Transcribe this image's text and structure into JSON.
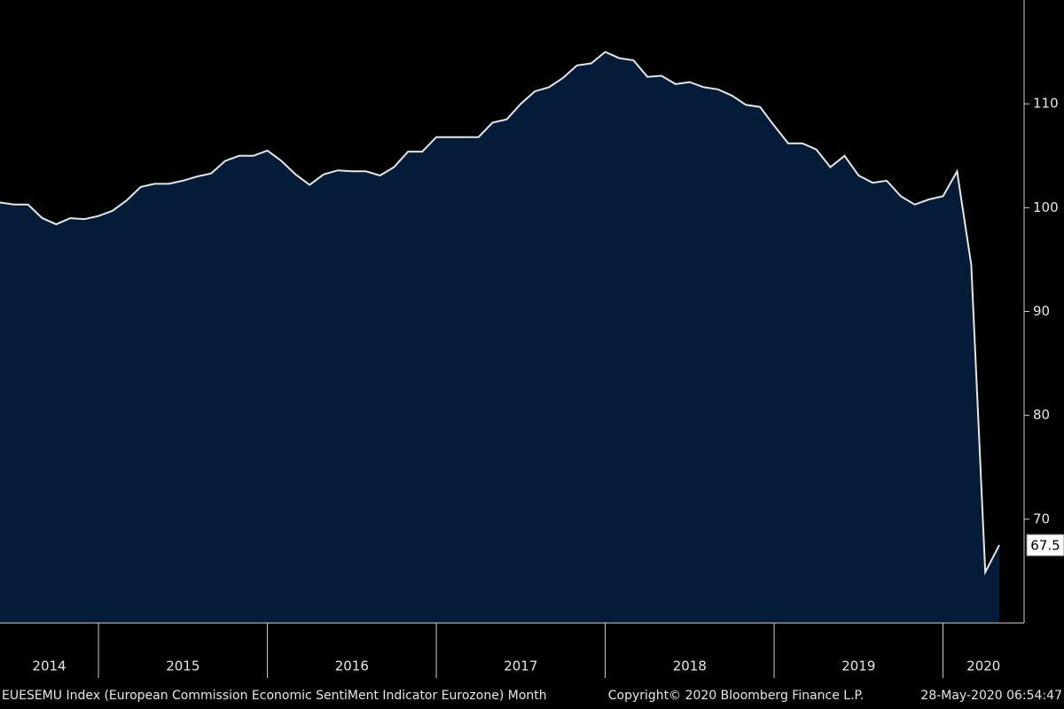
{
  "chart_data": {
    "type": "area",
    "series": [
      {
        "name": "EUESEMU Index",
        "color": "#e6e6e6",
        "fill": "#051c38",
        "x": [
          2014.417,
          2014.5,
          2014.583,
          2014.667,
          2014.75,
          2014.833,
          2014.917,
          2015,
          2015.083,
          2015.167,
          2015.25,
          2015.333,
          2015.417,
          2015.5,
          2015.583,
          2015.667,
          2015.75,
          2015.833,
          2015.917,
          2016,
          2016.083,
          2016.167,
          2016.25,
          2016.333,
          2016.417,
          2016.5,
          2016.583,
          2016.667,
          2016.75,
          2016.833,
          2016.917,
          2017,
          2017.083,
          2017.167,
          2017.25,
          2017.333,
          2017.417,
          2017.5,
          2017.583,
          2017.667,
          2017.75,
          2017.833,
          2017.917,
          2018,
          2018.083,
          2018.167,
          2018.25,
          2018.333,
          2018.417,
          2018.5,
          2018.583,
          2018.667,
          2018.75,
          2018.833,
          2018.917,
          2019,
          2019.083,
          2019.167,
          2019.25,
          2019.333,
          2019.417,
          2019.5,
          2019.583,
          2019.667,
          2019.75,
          2019.833,
          2019.917,
          2020,
          2020.083,
          2020.167,
          2020.25,
          2020.333
        ],
        "values": [
          100.5,
          100.3,
          100.3,
          99.0,
          98.4,
          99.0,
          98.9,
          99.2,
          99.7,
          100.7,
          102.0,
          102.3,
          102.3,
          102.6,
          103.0,
          103.3,
          104.5,
          105.0,
          105.0,
          105.5,
          104.5,
          103.2,
          102.2,
          103.2,
          103.6,
          103.5,
          103.5,
          103.1,
          103.9,
          105.4,
          105.4,
          106.8,
          106.8,
          106.8,
          106.8,
          108.2,
          108.5,
          110.0,
          111.2,
          111.6,
          112.5,
          113.7,
          113.9,
          115.0,
          114.4,
          114.2,
          112.6,
          112.7,
          111.9,
          112.1,
          111.6,
          111.4,
          110.8,
          109.9,
          109.7,
          107.9,
          106.2,
          106.2,
          105.6,
          103.9,
          105.0,
          103.1,
          102.4,
          102.6,
          101.1,
          100.3,
          100.8,
          101.1,
          103.5,
          94.5,
          64.9,
          67.5
        ]
      }
    ],
    "xlim": [
      2014.417,
      2020.48
    ],
    "xticks": [
      2015,
      2016,
      2017,
      2018,
      2019,
      2020
    ],
    "year_labels": [
      "2014",
      "2015",
      "2016",
      "2017",
      "2018",
      "2019",
      "2020"
    ],
    "ylim": [
      60,
      120
    ],
    "yticks": [
      70,
      80,
      90,
      100,
      110
    ],
    "footer": {
      "left": "EUESEMU Index (European Commission Economic SentiMent Indicator Eurozone)  Month",
      "center": "Copyright© 2020 Bloomberg Finance L.P.",
      "right": "28-May-2020 06:54:47"
    }
  }
}
